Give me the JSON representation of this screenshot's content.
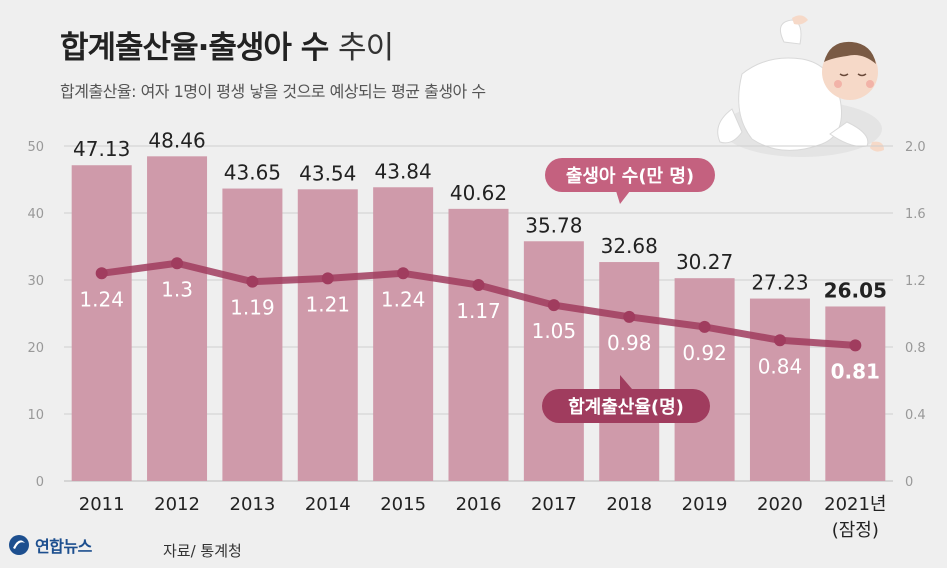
{
  "header": {
    "title_bold": "합계출산율·출생아 수",
    "title_light": "추이",
    "subtitle": "합계출산율: 여자 1명이 평생 낳을 것으로 예상되는 평균 출생아 수"
  },
  "footer": {
    "logo": "연합뉴스",
    "source": "자료/ 통계청"
  },
  "colors": {
    "bar": "#cf9aaa",
    "line": "#a03c5e",
    "callout": "#c4617f",
    "background": "#efefef"
  },
  "chart_data": {
    "type": "bar+line",
    "categories": [
      "2011",
      "2012",
      "2013",
      "2014",
      "2015",
      "2016",
      "2017",
      "2018",
      "2019",
      "2020",
      "2021년"
    ],
    "category_note": "(잠정)",
    "series": [
      {
        "name": "출생아 수(만 명)",
        "type": "bar",
        "axis": "left",
        "values": [
          47.13,
          48.46,
          43.65,
          43.54,
          43.84,
          40.62,
          35.78,
          32.68,
          30.27,
          27.23,
          26.05
        ],
        "labels": [
          "47.13",
          "48.46",
          "43.65",
          "43.54",
          "43.84",
          "40.62",
          "35.78",
          "32.68",
          "30.27",
          "27.23",
          "26.05"
        ]
      },
      {
        "name": "합계출산율(명)",
        "type": "line",
        "axis": "right",
        "values": [
          1.24,
          1.3,
          1.19,
          1.21,
          1.24,
          1.17,
          1.05,
          0.98,
          0.92,
          0.84,
          0.81
        ],
        "labels": [
          "1.24",
          "1.3",
          "1.19",
          "1.21",
          "1.24",
          "1.17",
          "1.05",
          "0.98",
          "0.92",
          "0.84",
          "0.81"
        ]
      }
    ],
    "left_axis": {
      "range": [
        0,
        50
      ],
      "ticks": [
        "0",
        "10",
        "20",
        "30",
        "40",
        "50"
      ]
    },
    "right_axis": {
      "range": [
        0,
        2.0
      ],
      "ticks": [
        "0",
        "0.4",
        "0.8",
        "1.2",
        "1.6",
        "2.0"
      ]
    },
    "gridlines": true
  }
}
